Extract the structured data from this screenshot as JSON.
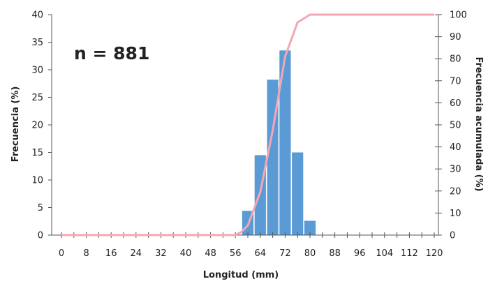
{
  "chart_data": {
    "type": "bar",
    "annotation": "n = 881",
    "xlabel": "Longitud (mm)",
    "ylabel": "Frecuencia (%)",
    "y2label": "Frecuencia acumulada (%)",
    "xlim": [
      0,
      120
    ],
    "ylim": [
      0,
      40
    ],
    "y2lim": [
      0,
      100
    ],
    "x_ticks": [
      "0",
      "8",
      "16",
      "24",
      "32",
      "40",
      "48",
      "56",
      "64",
      "72",
      "80",
      "88",
      "96",
      "104",
      "112",
      "120"
    ],
    "y_ticks": [
      "0",
      "5",
      "10",
      "15",
      "20",
      "25",
      "30",
      "35",
      "40"
    ],
    "y2_ticks": [
      "0",
      "10",
      "20",
      "30",
      "40",
      "50",
      "60",
      "70",
      "80",
      "90",
      "100"
    ],
    "grid": false,
    "bar_color": "#5b9bd5",
    "line_color": "#f4a6b4",
    "series": [
      {
        "type": "bar",
        "axis": "left",
        "x": [
          60,
          64,
          68,
          72,
          76,
          80
        ],
        "values": [
          4.4,
          14.5,
          28.2,
          33.5,
          15.0,
          2.6
        ]
      },
      {
        "type": "line",
        "axis": "right",
        "x": [
          0,
          56,
          58,
          60,
          64,
          68,
          72,
          76,
          80,
          120
        ],
        "values": [
          0,
          0,
          1.5,
          4.4,
          19.5,
          47.5,
          81,
          96.5,
          100,
          100
        ]
      }
    ]
  }
}
